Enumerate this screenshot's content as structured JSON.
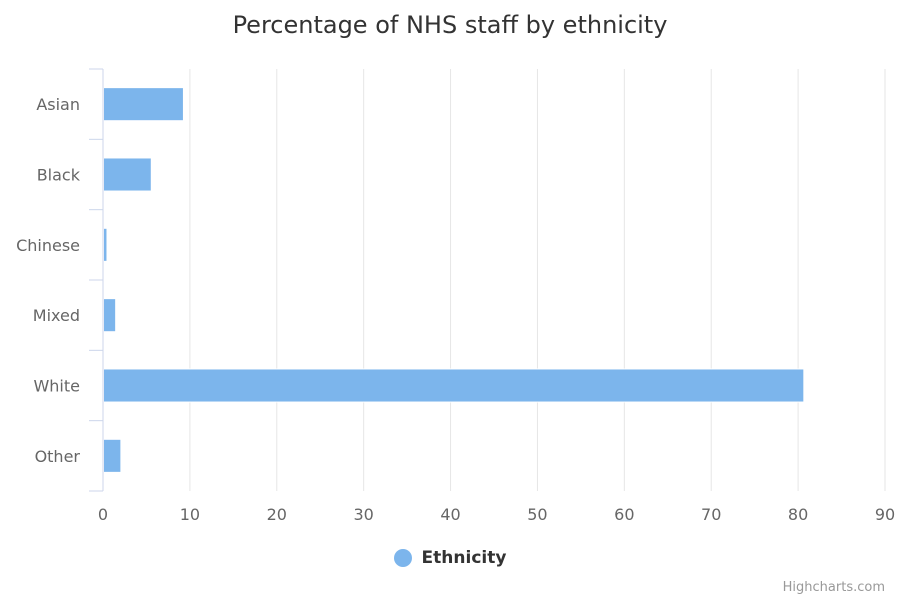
{
  "chart_data": {
    "type": "bar",
    "orientation": "horizontal",
    "title": "Percentage of NHS staff by ethnicity",
    "categories": [
      "Asian",
      "Black",
      "Chinese",
      "Mixed",
      "White",
      "Other"
    ],
    "series": [
      {
        "name": "Ethnicity",
        "values": [
          9.2,
          5.5,
          0.4,
          1.4,
          80.6,
          2.0
        ],
        "color": "#7cb5ec"
      }
    ],
    "xlim": [
      0,
      90
    ],
    "ticks": [
      0,
      10,
      20,
      30,
      40,
      50,
      60,
      70,
      80,
      90
    ],
    "grid": true,
    "legend": "bottom-center"
  },
  "credits": "Highcharts.com"
}
